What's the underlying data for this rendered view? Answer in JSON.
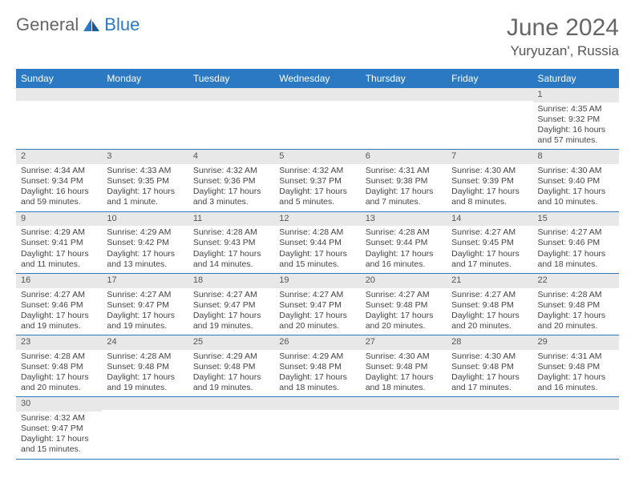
{
  "logo": {
    "text1": "General",
    "text2": "Blue"
  },
  "title": "June 2024",
  "location": "Yuryuzan', Russia",
  "colors": {
    "header_bg": "#2b79c2",
    "daynum_bg": "#e8e8e8",
    "border": "#2b79c2"
  },
  "weekdays": [
    "Sunday",
    "Monday",
    "Tuesday",
    "Wednesday",
    "Thursday",
    "Friday",
    "Saturday"
  ],
  "weeks": [
    [
      {
        "n": "",
        "sunrise": "",
        "sunset": "",
        "daylight": ""
      },
      {
        "n": "",
        "sunrise": "",
        "sunset": "",
        "daylight": ""
      },
      {
        "n": "",
        "sunrise": "",
        "sunset": "",
        "daylight": ""
      },
      {
        "n": "",
        "sunrise": "",
        "sunset": "",
        "daylight": ""
      },
      {
        "n": "",
        "sunrise": "",
        "sunset": "",
        "daylight": ""
      },
      {
        "n": "",
        "sunrise": "",
        "sunset": "",
        "daylight": ""
      },
      {
        "n": "1",
        "sunrise": "Sunrise: 4:35 AM",
        "sunset": "Sunset: 9:32 PM",
        "daylight": "Daylight: 16 hours and 57 minutes."
      }
    ],
    [
      {
        "n": "2",
        "sunrise": "Sunrise: 4:34 AM",
        "sunset": "Sunset: 9:34 PM",
        "daylight": "Daylight: 16 hours and 59 minutes."
      },
      {
        "n": "3",
        "sunrise": "Sunrise: 4:33 AM",
        "sunset": "Sunset: 9:35 PM",
        "daylight": "Daylight: 17 hours and 1 minute."
      },
      {
        "n": "4",
        "sunrise": "Sunrise: 4:32 AM",
        "sunset": "Sunset: 9:36 PM",
        "daylight": "Daylight: 17 hours and 3 minutes."
      },
      {
        "n": "5",
        "sunrise": "Sunrise: 4:32 AM",
        "sunset": "Sunset: 9:37 PM",
        "daylight": "Daylight: 17 hours and 5 minutes."
      },
      {
        "n": "6",
        "sunrise": "Sunrise: 4:31 AM",
        "sunset": "Sunset: 9:38 PM",
        "daylight": "Daylight: 17 hours and 7 minutes."
      },
      {
        "n": "7",
        "sunrise": "Sunrise: 4:30 AM",
        "sunset": "Sunset: 9:39 PM",
        "daylight": "Daylight: 17 hours and 8 minutes."
      },
      {
        "n": "8",
        "sunrise": "Sunrise: 4:30 AM",
        "sunset": "Sunset: 9:40 PM",
        "daylight": "Daylight: 17 hours and 10 minutes."
      }
    ],
    [
      {
        "n": "9",
        "sunrise": "Sunrise: 4:29 AM",
        "sunset": "Sunset: 9:41 PM",
        "daylight": "Daylight: 17 hours and 11 minutes."
      },
      {
        "n": "10",
        "sunrise": "Sunrise: 4:29 AM",
        "sunset": "Sunset: 9:42 PM",
        "daylight": "Daylight: 17 hours and 13 minutes."
      },
      {
        "n": "11",
        "sunrise": "Sunrise: 4:28 AM",
        "sunset": "Sunset: 9:43 PM",
        "daylight": "Daylight: 17 hours and 14 minutes."
      },
      {
        "n": "12",
        "sunrise": "Sunrise: 4:28 AM",
        "sunset": "Sunset: 9:44 PM",
        "daylight": "Daylight: 17 hours and 15 minutes."
      },
      {
        "n": "13",
        "sunrise": "Sunrise: 4:28 AM",
        "sunset": "Sunset: 9:44 PM",
        "daylight": "Daylight: 17 hours and 16 minutes."
      },
      {
        "n": "14",
        "sunrise": "Sunrise: 4:27 AM",
        "sunset": "Sunset: 9:45 PM",
        "daylight": "Daylight: 17 hours and 17 minutes."
      },
      {
        "n": "15",
        "sunrise": "Sunrise: 4:27 AM",
        "sunset": "Sunset: 9:46 PM",
        "daylight": "Daylight: 17 hours and 18 minutes."
      }
    ],
    [
      {
        "n": "16",
        "sunrise": "Sunrise: 4:27 AM",
        "sunset": "Sunset: 9:46 PM",
        "daylight": "Daylight: 17 hours and 19 minutes."
      },
      {
        "n": "17",
        "sunrise": "Sunrise: 4:27 AM",
        "sunset": "Sunset: 9:47 PM",
        "daylight": "Daylight: 17 hours and 19 minutes."
      },
      {
        "n": "18",
        "sunrise": "Sunrise: 4:27 AM",
        "sunset": "Sunset: 9:47 PM",
        "daylight": "Daylight: 17 hours and 19 minutes."
      },
      {
        "n": "19",
        "sunrise": "Sunrise: 4:27 AM",
        "sunset": "Sunset: 9:47 PM",
        "daylight": "Daylight: 17 hours and 20 minutes."
      },
      {
        "n": "20",
        "sunrise": "Sunrise: 4:27 AM",
        "sunset": "Sunset: 9:48 PM",
        "daylight": "Daylight: 17 hours and 20 minutes."
      },
      {
        "n": "21",
        "sunrise": "Sunrise: 4:27 AM",
        "sunset": "Sunset: 9:48 PM",
        "daylight": "Daylight: 17 hours and 20 minutes."
      },
      {
        "n": "22",
        "sunrise": "Sunrise: 4:28 AM",
        "sunset": "Sunset: 9:48 PM",
        "daylight": "Daylight: 17 hours and 20 minutes."
      }
    ],
    [
      {
        "n": "23",
        "sunrise": "Sunrise: 4:28 AM",
        "sunset": "Sunset: 9:48 PM",
        "daylight": "Daylight: 17 hours and 20 minutes."
      },
      {
        "n": "24",
        "sunrise": "Sunrise: 4:28 AM",
        "sunset": "Sunset: 9:48 PM",
        "daylight": "Daylight: 17 hours and 19 minutes."
      },
      {
        "n": "25",
        "sunrise": "Sunrise: 4:29 AM",
        "sunset": "Sunset: 9:48 PM",
        "daylight": "Daylight: 17 hours and 19 minutes."
      },
      {
        "n": "26",
        "sunrise": "Sunrise: 4:29 AM",
        "sunset": "Sunset: 9:48 PM",
        "daylight": "Daylight: 17 hours and 18 minutes."
      },
      {
        "n": "27",
        "sunrise": "Sunrise: 4:30 AM",
        "sunset": "Sunset: 9:48 PM",
        "daylight": "Daylight: 17 hours and 18 minutes."
      },
      {
        "n": "28",
        "sunrise": "Sunrise: 4:30 AM",
        "sunset": "Sunset: 9:48 PM",
        "daylight": "Daylight: 17 hours and 17 minutes."
      },
      {
        "n": "29",
        "sunrise": "Sunrise: 4:31 AM",
        "sunset": "Sunset: 9:48 PM",
        "daylight": "Daylight: 17 hours and 16 minutes."
      }
    ],
    [
      {
        "n": "30",
        "sunrise": "Sunrise: 4:32 AM",
        "sunset": "Sunset: 9:47 PM",
        "daylight": "Daylight: 17 hours and 15 minutes."
      },
      {
        "n": "",
        "sunrise": "",
        "sunset": "",
        "daylight": ""
      },
      {
        "n": "",
        "sunrise": "",
        "sunset": "",
        "daylight": ""
      },
      {
        "n": "",
        "sunrise": "",
        "sunset": "",
        "daylight": ""
      },
      {
        "n": "",
        "sunrise": "",
        "sunset": "",
        "daylight": ""
      },
      {
        "n": "",
        "sunrise": "",
        "sunset": "",
        "daylight": ""
      },
      {
        "n": "",
        "sunrise": "",
        "sunset": "",
        "daylight": ""
      }
    ]
  ]
}
